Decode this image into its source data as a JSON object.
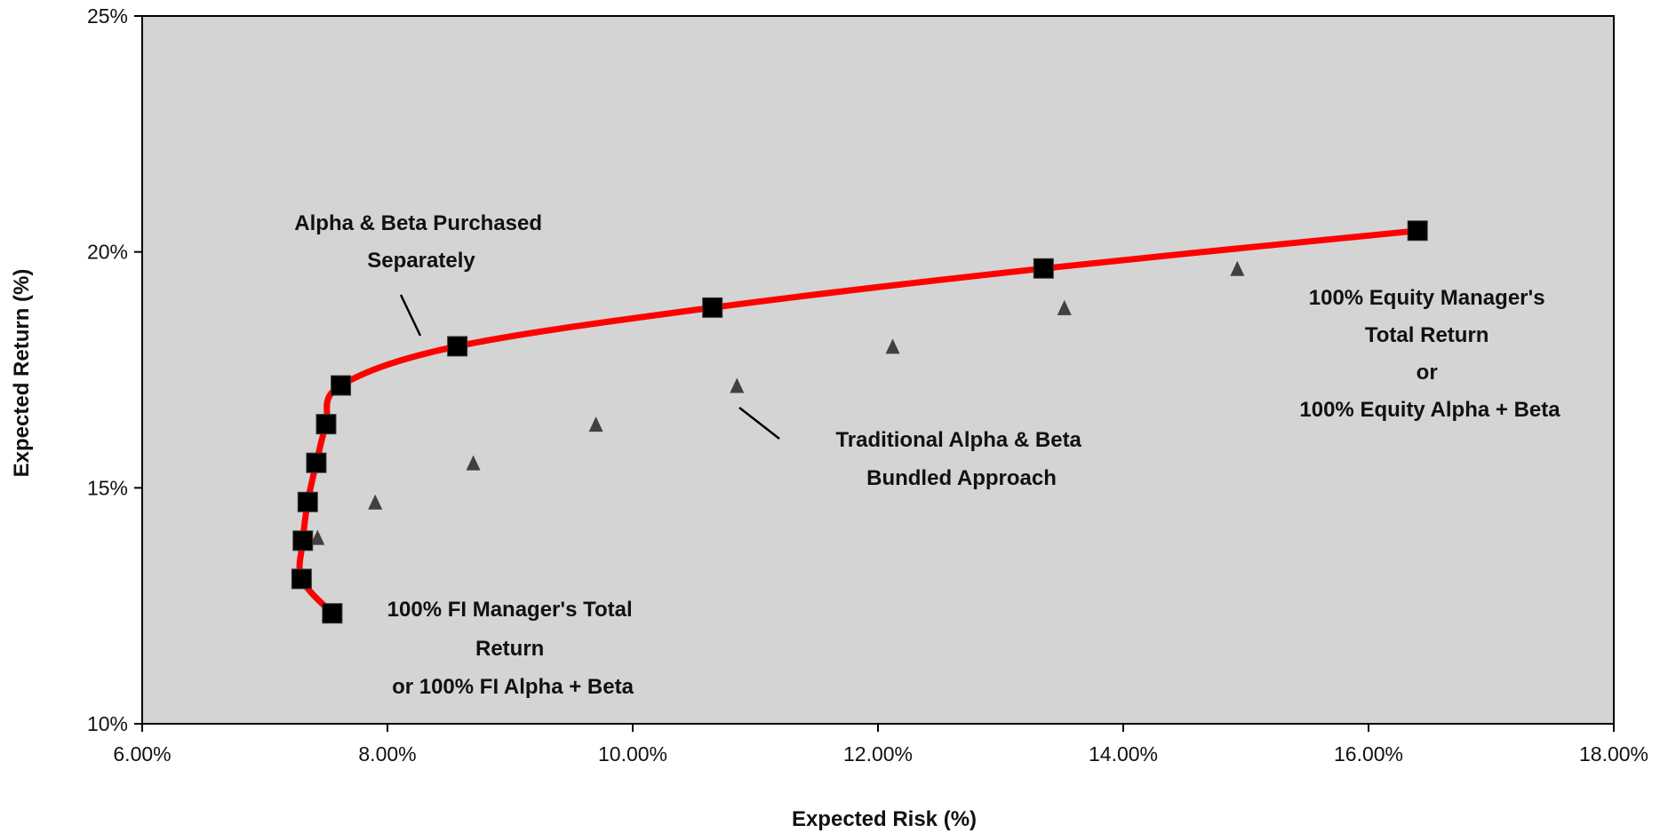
{
  "chart_data": {
    "type": "scatter",
    "xlabel": "Expected Risk (%)",
    "ylabel": "Expected Return (%)",
    "xlim": [
      0.06,
      0.18
    ],
    "ylim": [
      0.1,
      0.25
    ],
    "x_ticks": [
      {
        "value": 0.06,
        "label": "6.00%"
      },
      {
        "value": 0.08,
        "label": "8.00%"
      },
      {
        "value": 0.1,
        "label": "10.00%"
      },
      {
        "value": 0.12,
        "label": "12.00%"
      },
      {
        "value": 0.14,
        "label": "14.00%"
      },
      {
        "value": 0.16,
        "label": "16.00%"
      },
      {
        "value": 0.18,
        "label": "18.00%"
      }
    ],
    "y_ticks": [
      {
        "value": 0.1,
        "label": "10%"
      },
      {
        "value": 0.15,
        "label": "15%"
      },
      {
        "value": 0.2,
        "label": "20%"
      },
      {
        "value": 0.25,
        "label": "25%"
      }
    ],
    "grid": false,
    "legend": "none",
    "plot_background": "#d4d4d4",
    "series": [
      {
        "marker": "square",
        "line": true,
        "line_color": "#ff0000",
        "marker_color": "#000000",
        "x": [
          0.0755,
          0.073,
          0.0731,
          0.0735,
          0.0742,
          0.075,
          0.0762,
          0.0857,
          0.1065,
          0.1335,
          0.164
        ],
        "y": [
          0.1234,
          0.1307,
          0.1388,
          0.147,
          0.1553,
          0.1635,
          0.1717,
          0.18,
          0.1882,
          0.1965,
          0.2045
        ]
      },
      {
        "marker": "triangle",
        "line": false,
        "marker_color": "#404040",
        "x": [
          0.0752,
          0.0728,
          0.0743,
          0.079,
          0.087,
          0.097,
          0.1085,
          0.1212,
          0.1352,
          0.1493,
          0.1642
        ],
        "y": [
          0.1234,
          0.1307,
          0.1395,
          0.147,
          0.1553,
          0.1635,
          0.1717,
          0.18,
          0.1882,
          0.1965,
          0.2045
        ]
      }
    ],
    "annotations": [
      {
        "lines": [
          "Alpha & Beta Purchased",
          "Separately"
        ]
      },
      {
        "lines": [
          "Traditional Alpha & Beta",
          "Bundled Approach"
        ]
      },
      {
        "lines": [
          "100% Equity Manager's",
          "Total Return",
          "or",
          "100% Equity Alpha + Beta"
        ]
      },
      {
        "lines": [
          "100% FI  Manager's Total",
          "Return",
          "or  100% FI Alpha + Beta"
        ]
      }
    ]
  }
}
